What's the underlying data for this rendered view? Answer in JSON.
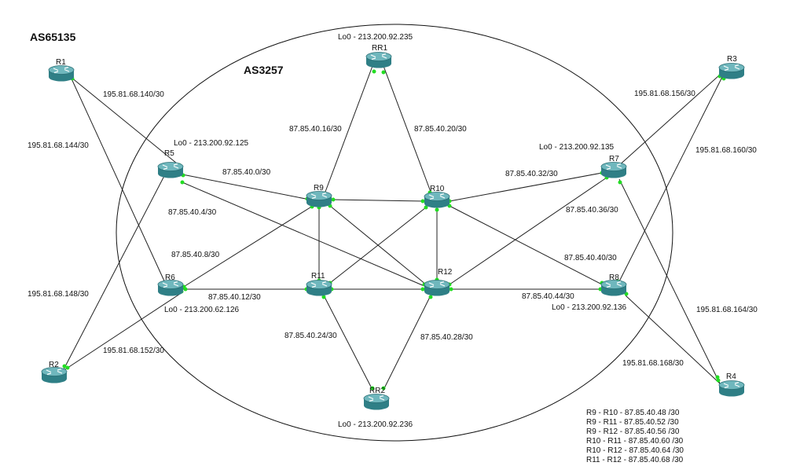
{
  "as_labels": {
    "outer": "AS65135",
    "inner": "AS3257"
  },
  "routers": {
    "R1": "R1",
    "R2": "R2",
    "R3": "R3",
    "R4": "R4",
    "R5": "R5",
    "R6": "R6",
    "R7": "R7",
    "R8": "R8",
    "R9": "R9",
    "R10": "R10",
    "R11": "R11",
    "R12": "R12",
    "RR1": "RR1",
    "RR2": "RR2"
  },
  "loopbacks": {
    "RR1": "Lo0 - 213.200.92.235",
    "R5": "Lo0 - 213.200.92.125",
    "R7": "Lo0 - 213.200.92.135",
    "R6": "Lo0 - 213.200.62.126",
    "R8": "Lo0 - 213.200.92.136",
    "RR2": "Lo0 - 213.200.92.236"
  },
  "subnets": {
    "r1_r5": "195.81.68.140/30",
    "r1_r6": "195.81.68.144/30",
    "r2_r5": "195.81.68.148/30",
    "r2_r6": "195.81.68.152/30",
    "r3_r7": "195.81.68.156/30",
    "r3_r8": "195.81.68.160/30",
    "r4_r7": "195.81.68.164/30",
    "r4_r8": "195.81.68.168/30",
    "rr1_r9": "87.85.40.16/30",
    "rr1_r10": "87.85.40.20/30",
    "r5_r9": "87.85.40.0/30",
    "r5_r12": "87.85.40.4/30",
    "r6_r9": "87.85.40.8/30",
    "r6_r11": "87.85.40.12/30",
    "r10_r7": "87.85.40.32/30",
    "r7_r12": "87.85.40.36/30",
    "r8_r10": "87.85.40.40/30",
    "r8_r12": "87.85.40.44/30",
    "r11_rr2": "87.85.40.24/30",
    "r12_rr2": "87.85.40.28/30"
  },
  "core_legend": [
    "R9 - R10 -  87.85.40.48 /30",
    "R9 - R11 -  87.85.40.52 /30",
    "R9 - R12 -  87.85.40.56 /30",
    "R10 - R11 -  87.85.40.60 /30",
    "R10 - R12 -  87.85.40.64 /30",
    "R11 - R12 -  87.85.40.68 /30"
  ],
  "colors": {
    "router_body": "#2f7f86",
    "router_top": "#6fb7bd",
    "link_dot": "#22dd22"
  },
  "icons": {
    "router": "router-icon"
  }
}
